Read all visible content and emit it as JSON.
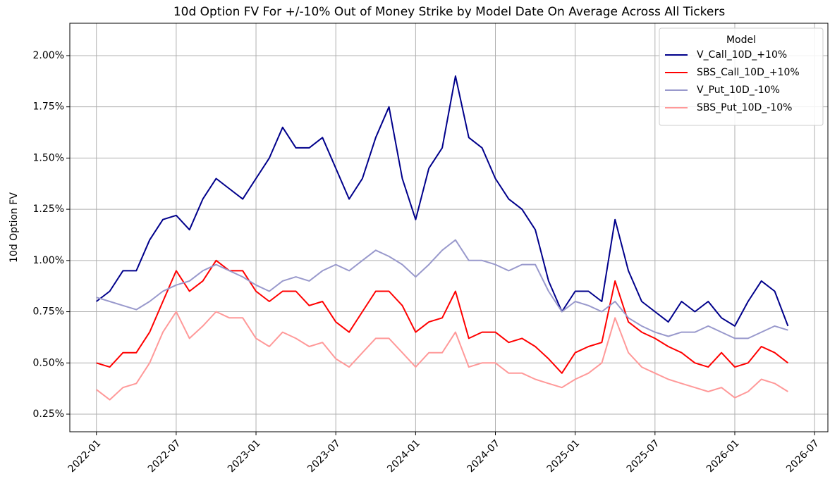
{
  "chart_data": {
    "type": "line",
    "title": "10d Option FV For +/-10% Out of Money Strike by Model Date On Average Across All Tickers",
    "ylabel": "10d Option FV",
    "legend_title": "Model",
    "legend": "upper right",
    "grid": true,
    "x": [
      "2022-01",
      "2022-02",
      "2022-03",
      "2022-04",
      "2022-05",
      "2022-06",
      "2022-07",
      "2022-08",
      "2022-09",
      "2022-10",
      "2022-11",
      "2022-12",
      "2023-01",
      "2023-02",
      "2023-03",
      "2023-04",
      "2023-05",
      "2023-06",
      "2023-07",
      "2023-08",
      "2023-09",
      "2023-10",
      "2023-11",
      "2023-12",
      "2024-01",
      "2024-02",
      "2024-03",
      "2024-04",
      "2024-05",
      "2024-06",
      "2024-07",
      "2024-08",
      "2024-09",
      "2024-10",
      "2024-11",
      "2024-12",
      "2025-01",
      "2025-02",
      "2025-03",
      "2025-04",
      "2025-05",
      "2025-06",
      "2025-07",
      "2025-08",
      "2025-09",
      "2025-10",
      "2025-11",
      "2025-12",
      "2026-01",
      "2026-02",
      "2026-03",
      "2026-04",
      "2026-05"
    ],
    "xlim": [
      "2021-11",
      "2026-08"
    ],
    "xticks": [
      "2022-01",
      "2022-07",
      "2023-01",
      "2023-07",
      "2024-01",
      "2024-07",
      "2025-01",
      "2025-07",
      "2026-01",
      "2026-07"
    ],
    "ylim": [
      0.164,
      2.158
    ],
    "yticks": [
      {
        "value": 0.25,
        "label": "0.25%"
      },
      {
        "value": 0.5,
        "label": "0.50%"
      },
      {
        "value": 0.75,
        "label": "0.75%"
      },
      {
        "value": 1.0,
        "label": "1.00%"
      },
      {
        "value": 1.25,
        "label": "1.25%"
      },
      {
        "value": 1.5,
        "label": "1.50%"
      },
      {
        "value": 1.75,
        "label": "1.75%"
      },
      {
        "value": 2.0,
        "label": "2.00%"
      }
    ],
    "series": [
      {
        "name": "V_Call_10D_+10%",
        "color": "#00008b",
        "values": [
          0.8,
          0.85,
          0.95,
          0.95,
          1.1,
          1.2,
          1.22,
          1.15,
          1.3,
          1.4,
          1.35,
          1.3,
          1.4,
          1.5,
          1.65,
          1.55,
          1.55,
          1.6,
          1.45,
          1.3,
          1.4,
          1.6,
          1.75,
          1.4,
          1.2,
          1.45,
          1.55,
          1.9,
          1.6,
          1.55,
          1.4,
          1.3,
          1.25,
          1.15,
          0.9,
          0.75,
          0.85,
          0.85,
          0.8,
          1.2,
          0.95,
          0.8,
          0.75,
          0.7,
          0.8,
          0.75,
          0.8,
          0.72,
          0.68,
          0.8,
          0.9,
          0.85,
          0.68
        ]
      },
      {
        "name": "SBS_Call_10D_+10%",
        "color": "#ff0000",
        "values": [
          0.5,
          0.48,
          0.55,
          0.55,
          0.65,
          0.8,
          0.95,
          0.85,
          0.9,
          1.0,
          0.95,
          0.95,
          0.85,
          0.8,
          0.85,
          0.85,
          0.78,
          0.8,
          0.7,
          0.65,
          0.75,
          0.85,
          0.85,
          0.78,
          0.65,
          0.7,
          0.72,
          0.85,
          0.62,
          0.65,
          0.65,
          0.6,
          0.62,
          0.58,
          0.52,
          0.45,
          0.55,
          0.58,
          0.6,
          0.9,
          0.7,
          0.65,
          0.62,
          0.58,
          0.55,
          0.5,
          0.48,
          0.55,
          0.48,
          0.5,
          0.58,
          0.55,
          0.5
        ]
      },
      {
        "name": "V_Put_10D_-10%",
        "color": "#9999cc",
        "values": [
          0.82,
          0.8,
          0.78,
          0.76,
          0.8,
          0.85,
          0.88,
          0.9,
          0.95,
          0.98,
          0.95,
          0.92,
          0.88,
          0.85,
          0.9,
          0.92,
          0.9,
          0.95,
          0.98,
          0.95,
          1.0,
          1.05,
          1.02,
          0.98,
          0.92,
          0.98,
          1.05,
          1.1,
          1.0,
          1.0,
          0.98,
          0.95,
          0.98,
          0.98,
          0.85,
          0.75,
          0.8,
          0.78,
          0.75,
          0.8,
          0.72,
          0.68,
          0.65,
          0.63,
          0.65,
          0.65,
          0.68,
          0.65,
          0.62,
          0.62,
          0.65,
          0.68,
          0.66
        ]
      },
      {
        "name": "SBS_Put_10D_-10%",
        "color": "#ff9999",
        "values": [
          0.37,
          0.32,
          0.38,
          0.4,
          0.5,
          0.65,
          0.75,
          0.62,
          0.68,
          0.75,
          0.72,
          0.72,
          0.62,
          0.58,
          0.65,
          0.62,
          0.58,
          0.6,
          0.52,
          0.48,
          0.55,
          0.62,
          0.62,
          0.55,
          0.48,
          0.55,
          0.55,
          0.65,
          0.48,
          0.5,
          0.5,
          0.45,
          0.45,
          0.42,
          0.4,
          0.38,
          0.42,
          0.45,
          0.5,
          0.72,
          0.55,
          0.48,
          0.45,
          0.42,
          0.4,
          0.38,
          0.36,
          0.38,
          0.33,
          0.36,
          0.42,
          0.4,
          0.36
        ]
      }
    ]
  }
}
